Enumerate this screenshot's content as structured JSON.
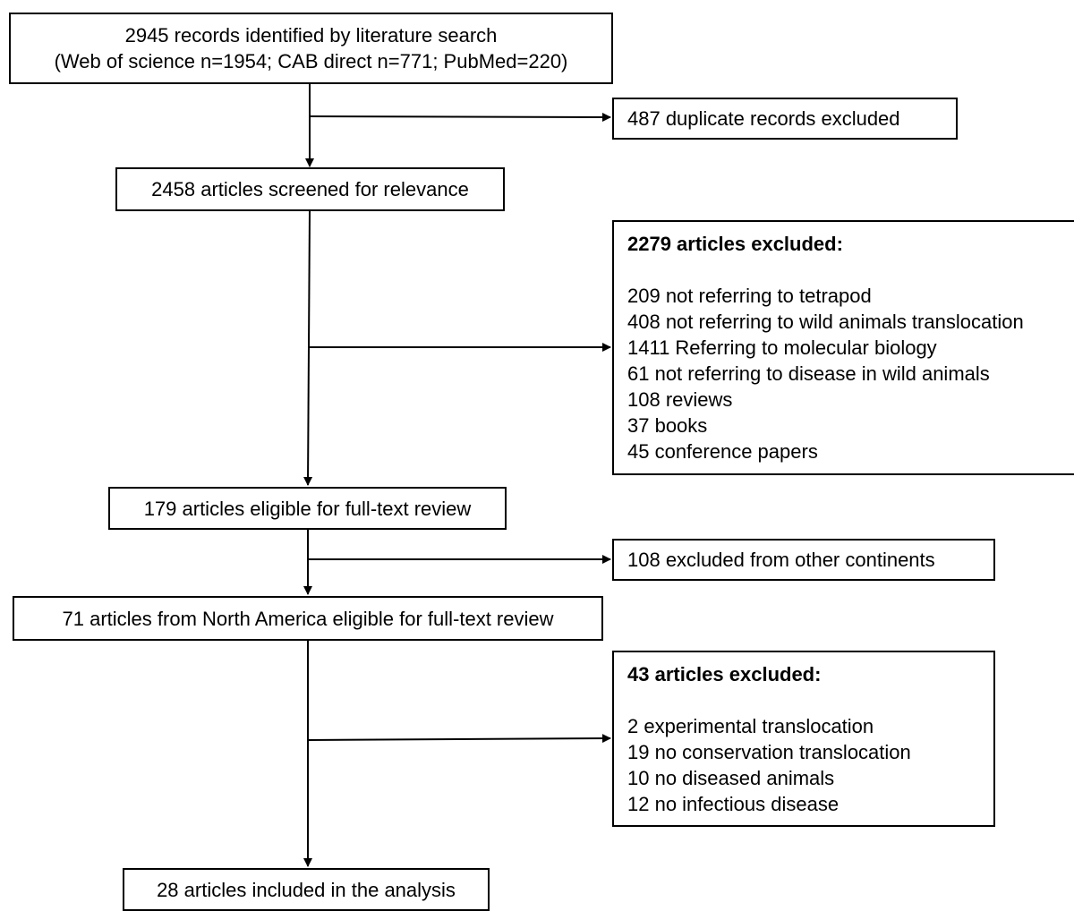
{
  "flow": {
    "identified": {
      "line1": "2945 records identified by literature search",
      "line2": "(Web of science n=1954; CAB direct n=771; PubMed=220)"
    },
    "duplicates": "487 duplicate records excluded",
    "screened": "2458 articles screened for relevance",
    "excluded_screen": {
      "header": "2279 articles excluded:",
      "items": [
        "209 not referring to tetrapod",
        "408 not referring to wild animals translocation",
        "1411 Referring to molecular biology",
        "61 not referring to disease in wild animals",
        "108 reviews",
        "37 books",
        "45 conference papers"
      ]
    },
    "eligible": "179 articles eligible for full-text review",
    "continents": "108 excluded from other continents",
    "north_america": "71 articles from North America eligible for full-text review",
    "excluded_fulltext": {
      "header": "43 articles excluded:",
      "items": [
        "2 experimental translocation",
        "19 no conservation translocation",
        "10 no diseased animals",
        "12 no infectious disease"
      ]
    },
    "included": "28 articles included in the analysis"
  }
}
